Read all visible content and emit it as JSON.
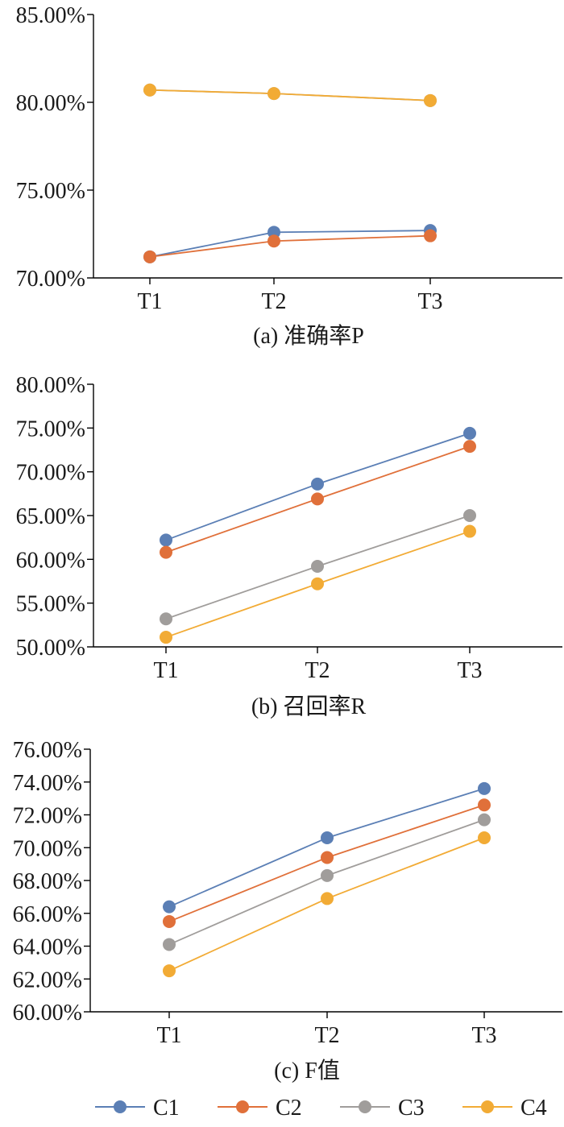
{
  "chart_data": [
    {
      "type": "line",
      "title": "(a) 准确率P",
      "categories": [
        "T1",
        "T2",
        "T3"
      ],
      "y_ticks": [
        "70.00%",
        "75.00%",
        "80.00%",
        "85.00%"
      ],
      "ylim": [
        70,
        85
      ],
      "grid": false,
      "series": [
        {
          "name": "C1",
          "values": [
            71.2,
            72.6,
            72.7
          ]
        },
        {
          "name": "C2",
          "values": [
            71.2,
            72.1,
            72.4
          ]
        },
        {
          "name": "C3",
          "values": [
            80.7,
            80.5,
            80.1
          ]
        },
        {
          "name": "C4",
          "values": [
            80.7,
            80.5,
            80.1
          ]
        }
      ]
    },
    {
      "type": "line",
      "title": "(b) 召回率R",
      "categories": [
        "T1",
        "T2",
        "T3"
      ],
      "y_ticks": [
        "50.00%",
        "55.00%",
        "60.00%",
        "65.00%",
        "70.00%",
        "75.00%",
        "80.00%"
      ],
      "ylim": [
        50,
        80
      ],
      "grid": false,
      "series": [
        {
          "name": "C1",
          "values": [
            62.2,
            68.6,
            74.4
          ]
        },
        {
          "name": "C2",
          "values": [
            60.8,
            66.9,
            72.9
          ]
        },
        {
          "name": "C3",
          "values": [
            53.2,
            59.2,
            65.0
          ]
        },
        {
          "name": "C4",
          "values": [
            51.1,
            57.2,
            63.2
          ]
        }
      ]
    },
    {
      "type": "line",
      "title": "(c) F值",
      "categories": [
        "T1",
        "T2",
        "T3"
      ],
      "y_ticks": [
        "60.00%",
        "62.00%",
        "64.00%",
        "66.00%",
        "68.00%",
        "70.00%",
        "72.00%",
        "74.00%",
        "76.00%"
      ],
      "ylim": [
        60,
        76
      ],
      "grid": false,
      "series": [
        {
          "name": "C1",
          "values": [
            66.4,
            70.6,
            73.6
          ]
        },
        {
          "name": "C2",
          "values": [
            65.5,
            69.4,
            72.6
          ]
        },
        {
          "name": "C3",
          "values": [
            64.1,
            68.3,
            71.7
          ]
        },
        {
          "name": "C4",
          "values": [
            62.5,
            66.9,
            70.6
          ]
        }
      ]
    }
  ],
  "legend": {
    "placement": "bottom",
    "items": [
      {
        "label": "C1",
        "color": "#5b7fb5"
      },
      {
        "label": "C2",
        "color": "#e0703a"
      },
      {
        "label": "C3",
        "color": "#a09d9b"
      },
      {
        "label": "C4",
        "color": "#f2ab35"
      }
    ]
  }
}
